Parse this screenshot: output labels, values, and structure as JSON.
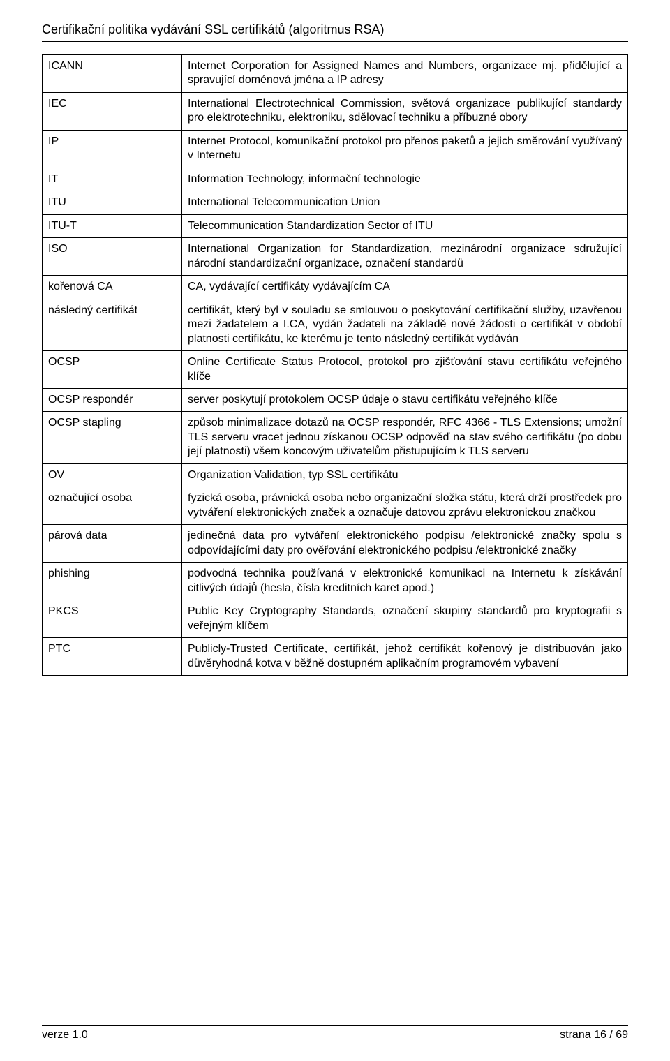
{
  "doc_title": "Certifikační politika vydávání SSL certifikátů (algoritmus RSA)",
  "footer": {
    "left": "verze 1.0",
    "right": "strana 16 / 69"
  },
  "rows": [
    {
      "term": "ICANN",
      "def": "Internet Corporation for Assigned Names and Numbers, organizace mj. přidělující a spravující doménová jména a IP adresy"
    },
    {
      "term": "IEC",
      "def": "International Electrotechnical Commission, světová organizace publikující standardy pro elektrotechniku, elektroniku, sdělovací techniku a příbuzné obory"
    },
    {
      "term": "IP",
      "def": "Internet Protocol, komunikační protokol pro přenos paketů a jejich směrování využívaný v Internetu"
    },
    {
      "term": "IT",
      "def": "Information Technology, informační technologie"
    },
    {
      "term": "ITU",
      "def": "International Telecommunication Union"
    },
    {
      "term": "ITU-T",
      "def": "Telecommunication Standardization Sector of ITU"
    },
    {
      "term": "ISO",
      "def": "International Organization for Standardization, mezinárodní organizace sdružující národní standardizační organizace, označení standardů"
    },
    {
      "term": "kořenová CA",
      "def": "CA, vydávající certifikáty vydávajícím CA"
    },
    {
      "term": "následný certifikát",
      "def": "certifikát, který byl v souladu se smlouvou o poskytování certifikační služby, uzavřenou mezi žadatelem a I.CA, vydán žadateli na základě nové žádosti o certifikát v období platnosti certifikátu, ke kterému je tento následný certifikát vydáván"
    },
    {
      "term": "OCSP",
      "def": "Online Certificate Status Protocol, protokol pro zjišťování stavu certifikátu veřejného klíče"
    },
    {
      "term": "OCSP respondér",
      "def": "server poskytují protokolem OCSP údaje o stavu certifikátu veřejného klíče"
    },
    {
      "term": "OCSP stapling",
      "def": "způsob minimalizace dotazů na OCSP respondér, RFC 4366 - TLS Extensions; umožní TLS serveru vracet jednou získanou OCSP odpověď na stav svého certifikátu (po dobu její platnosti) všem koncovým uživatelům přistupujícím k TLS serveru"
    },
    {
      "term": "OV",
      "def": "Organization Validation, typ SSL certifikátu"
    },
    {
      "term": "označující osoba",
      "def": "fyzická osoba, právnická osoba nebo organizační složka státu, která drží prostředek pro vytváření elektronických značek a označuje datovou zprávu elektronickou značkou"
    },
    {
      "term": "párová data",
      "def": "jedinečná data pro vytváření elektronického podpisu /elektronické značky spolu s odpovídajícími daty pro ověřování elektronického podpisu /elektronické značky"
    },
    {
      "term": "phishing",
      "def": "podvodná technika používaná v elektronické komunikaci na Internetu k získávání citlivých údajů (hesla, čísla kreditních karet apod.)"
    },
    {
      "term": "PKCS",
      "def": "Public Key Cryptography Standards, označení skupiny standardů pro kryptografii s veřejným klíčem"
    },
    {
      "term": "PTC",
      "def": "Publicly-Trusted Certificate, certifikát, jehož certifikát kořenový je distribuován jako důvěryhodná kotva v běžně dostupném aplikačním programovém vybavení"
    }
  ]
}
